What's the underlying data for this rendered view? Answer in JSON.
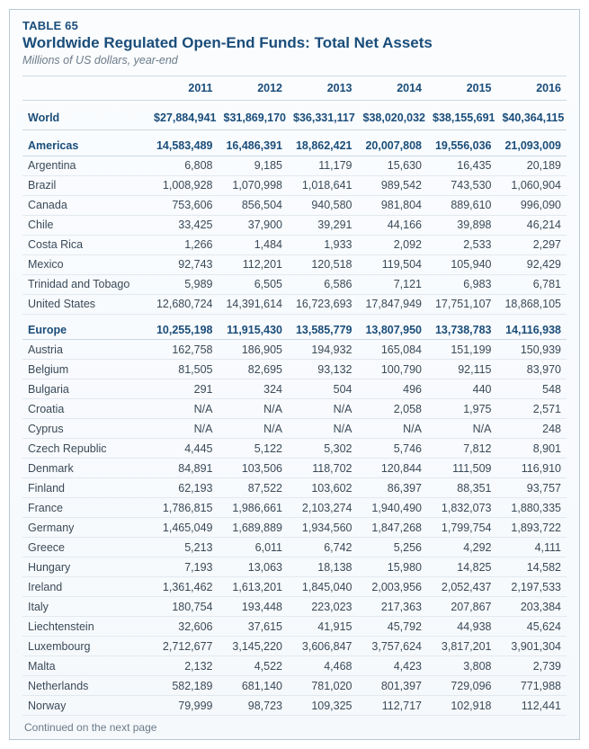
{
  "header": {
    "table_label": "TABLE 65",
    "title": "Worldwide Regulated Open-End Funds: Total Net Assets",
    "subtitle": "Millions of US dollars, year-end"
  },
  "columns": [
    "2011",
    "2012",
    "2013",
    "2014",
    "2015",
    "2016"
  ],
  "rows": [
    {
      "type": "world",
      "label": "World",
      "values": [
        "$27,884,941",
        "$31,869,170",
        "$36,331,117",
        "$38,020,032",
        "$38,155,691",
        "$40,364,115"
      ]
    },
    {
      "type": "section",
      "label": "Americas",
      "values": [
        "14,583,489",
        "16,486,391",
        "18,862,421",
        "20,007,808",
        "19,556,036",
        "21,093,009"
      ]
    },
    {
      "type": "row",
      "label": "Argentina",
      "values": [
        "6,808",
        "9,185",
        "11,179",
        "15,630",
        "16,435",
        "20,189"
      ]
    },
    {
      "type": "row",
      "label": "Brazil",
      "values": [
        "1,008,928",
        "1,070,998",
        "1,018,641",
        "989,542",
        "743,530",
        "1,060,904"
      ]
    },
    {
      "type": "row",
      "label": "Canada",
      "values": [
        "753,606",
        "856,504",
        "940,580",
        "981,804",
        "889,610",
        "996,090"
      ]
    },
    {
      "type": "row",
      "label": "Chile",
      "values": [
        "33,425",
        "37,900",
        "39,291",
        "44,166",
        "39,898",
        "46,214"
      ]
    },
    {
      "type": "row",
      "label": "Costa Rica",
      "values": [
        "1,266",
        "1,484",
        "1,933",
        "2,092",
        "2,533",
        "2,297"
      ]
    },
    {
      "type": "row",
      "label": "Mexico",
      "values": [
        "92,743",
        "112,201",
        "120,518",
        "119,504",
        "105,940",
        "92,429"
      ]
    },
    {
      "type": "row",
      "label": "Trinidad and Tobago",
      "values": [
        "5,989",
        "6,505",
        "6,586",
        "7,121",
        "6,983",
        "6,781"
      ]
    },
    {
      "type": "row",
      "label": "United States",
      "values": [
        "12,680,724",
        "14,391,614",
        "16,723,693",
        "17,847,949",
        "17,751,107",
        "18,868,105"
      ]
    },
    {
      "type": "section",
      "label": "Europe",
      "values": [
        "10,255,198",
        "11,915,430",
        "13,585,779",
        "13,807,950",
        "13,738,783",
        "14,116,938"
      ]
    },
    {
      "type": "row",
      "label": "Austria",
      "values": [
        "162,758",
        "186,905",
        "194,932",
        "165,084",
        "151,199",
        "150,939"
      ]
    },
    {
      "type": "row",
      "label": "Belgium",
      "values": [
        "81,505",
        "82,695",
        "93,132",
        "100,790",
        "92,115",
        "83,970"
      ]
    },
    {
      "type": "row",
      "label": "Bulgaria",
      "values": [
        "291",
        "324",
        "504",
        "496",
        "440",
        "548"
      ]
    },
    {
      "type": "row",
      "label": "Croatia",
      "values": [
        "N/A",
        "N/A",
        "N/A",
        "2,058",
        "1,975",
        "2,571"
      ]
    },
    {
      "type": "row",
      "label": "Cyprus",
      "values": [
        "N/A",
        "N/A",
        "N/A",
        "N/A",
        "N/A",
        "248"
      ]
    },
    {
      "type": "row",
      "label": "Czech Republic",
      "values": [
        "4,445",
        "5,122",
        "5,302",
        "5,746",
        "7,812",
        "8,901"
      ]
    },
    {
      "type": "row",
      "label": "Denmark",
      "values": [
        "84,891",
        "103,506",
        "118,702",
        "120,844",
        "111,509",
        "116,910"
      ]
    },
    {
      "type": "row",
      "label": "Finland",
      "values": [
        "62,193",
        "87,522",
        "103,602",
        "86,397",
        "88,351",
        "93,757"
      ]
    },
    {
      "type": "row",
      "label": "France",
      "values": [
        "1,786,815",
        "1,986,661",
        "2,103,274",
        "1,940,490",
        "1,832,073",
        "1,880,335"
      ]
    },
    {
      "type": "row",
      "label": "Germany",
      "values": [
        "1,465,049",
        "1,689,889",
        "1,934,560",
        "1,847,268",
        "1,799,754",
        "1,893,722"
      ]
    },
    {
      "type": "row",
      "label": "Greece",
      "values": [
        "5,213",
        "6,011",
        "6,742",
        "5,256",
        "4,292",
        "4,111"
      ]
    },
    {
      "type": "row",
      "label": "Hungary",
      "values": [
        "7,193",
        "13,063",
        "18,138",
        "15,980",
        "14,825",
        "14,582"
      ]
    },
    {
      "type": "row",
      "label": "Ireland",
      "values": [
        "1,361,462",
        "1,613,201",
        "1,845,040",
        "2,003,956",
        "2,052,437",
        "2,197,533"
      ]
    },
    {
      "type": "row",
      "label": "Italy",
      "values": [
        "180,754",
        "193,448",
        "223,023",
        "217,363",
        "207,867",
        "203,384"
      ]
    },
    {
      "type": "row",
      "label": "Liechtenstein",
      "values": [
        "32,606",
        "37,615",
        "41,915",
        "45,792",
        "44,938",
        "45,624"
      ]
    },
    {
      "type": "row",
      "label": "Luxembourg",
      "values": [
        "2,712,677",
        "3,145,220",
        "3,606,847",
        "3,757,624",
        "3,817,201",
        "3,901,304"
      ]
    },
    {
      "type": "row",
      "label": "Malta",
      "values": [
        "2,132",
        "4,522",
        "4,468",
        "4,423",
        "3,808",
        "2,739"
      ]
    },
    {
      "type": "row",
      "label": "Netherlands",
      "values": [
        "582,189",
        "681,140",
        "781,020",
        "801,397",
        "729,096",
        "771,988"
      ]
    },
    {
      "type": "row",
      "label": "Norway",
      "values": [
        "79,999",
        "98,723",
        "109,325",
        "112,717",
        "102,918",
        "112,441"
      ]
    }
  ],
  "footer": {
    "continued": "Continued on the next page"
  }
}
